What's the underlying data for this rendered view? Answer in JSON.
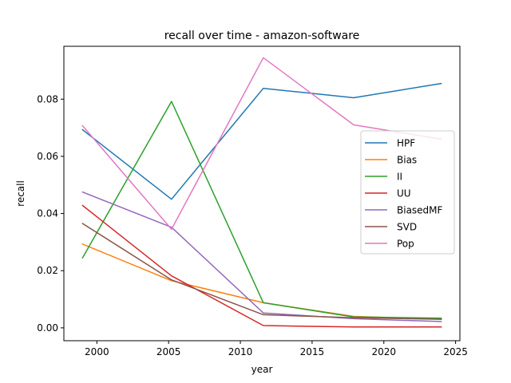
{
  "chart_data": {
    "type": "line",
    "title": "recall over time - amazon-software",
    "xlabel": "year",
    "ylabel": "recall",
    "xlim": [
      1997.7,
      2025.3
    ],
    "ylim": [
      -0.0045,
      0.0985
    ],
    "xticks": [
      2000,
      2005,
      2010,
      2015,
      2020,
      2025
    ],
    "yticks": [
      0.0,
      0.02,
      0.04,
      0.06,
      0.08
    ],
    "ytick_labels": [
      "0.00",
      "0.02",
      "0.04",
      "0.06",
      "0.08"
    ],
    "grid": false,
    "legend_position": "center-right",
    "x": [
      1999.0,
      2005.2,
      2011.6,
      2017.9,
      2024.0
    ],
    "series": [
      {
        "name": "HPF",
        "color": "#1f77b4",
        "values": [
          0.0693,
          0.045,
          0.0838,
          0.0805,
          0.0855
        ]
      },
      {
        "name": "Bias",
        "color": "#ff7f0e",
        "values": [
          0.0293,
          0.0165,
          0.0088,
          0.004,
          0.003
        ]
      },
      {
        "name": "II",
        "color": "#2ca02c",
        "values": [
          0.0245,
          0.0792,
          0.0088,
          0.0038,
          0.0034
        ]
      },
      {
        "name": "UU",
        "color": "#d62728",
        "values": [
          0.0428,
          0.0182,
          0.0008,
          0.0003,
          0.0003
        ]
      },
      {
        "name": "BiasedMF",
        "color": "#9467bd",
        "values": [
          0.0475,
          0.0352,
          0.0052,
          0.0032,
          0.0022
        ]
      },
      {
        "name": "SVD",
        "color": "#8c564b",
        "values": [
          0.0365,
          0.0168,
          0.0046,
          0.0035,
          0.003
        ]
      },
      {
        "name": "Pop",
        "color": "#e377c2",
        "values": [
          0.0707,
          0.0345,
          0.0945,
          0.071,
          0.066
        ]
      }
    ]
  }
}
